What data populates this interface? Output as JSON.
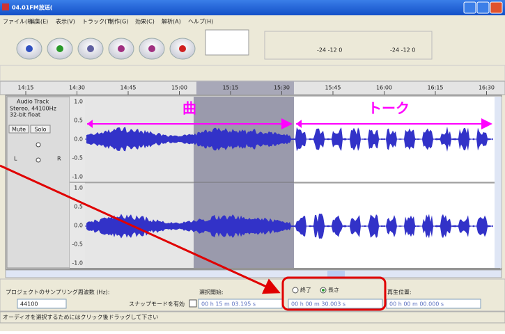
{
  "window": {
    "title": "04.01FM放送("
  },
  "menu": [
    "ファイル(F)",
    "編集(E)",
    "表示(V)",
    "トラック(T)",
    "制作(G)",
    "効果(C)",
    "解析(A)",
    "ヘルプ(H)"
  ],
  "meters": {
    "playback_scale": "-24 -12 0",
    "record_scale": "-24 -12 0"
  },
  "timeline": [
    "14:15",
    "14:30",
    "14:45",
    "15:00",
    "15:15",
    "15:30",
    "15:45",
    "16:00",
    "16:15",
    "16:30"
  ],
  "track": {
    "name": "Audio Track",
    "info": [
      "Stereo, 44100Hz",
      "32-bit float"
    ],
    "mute": "Mute",
    "solo": "Solo",
    "left": "L",
    "right": "R"
  },
  "scale": [
    "1.0",
    "0.5",
    "0.0",
    "-0.5",
    "-1.0"
  ],
  "annotations": {
    "song": "曲",
    "talk": "トーク"
  },
  "bottom": {
    "rate_label": "プロジェクトのサンプリング周波数 (Hz):",
    "rate": "44100",
    "snap": "スナップモードを有効",
    "start_label": "選択開始:",
    "start": "00 h 15 m 03.195 s",
    "end_option": "終了",
    "length_option": "長さ",
    "length": "00 h 00 m 30.003 s",
    "position_label": "再生位置:",
    "position": "00 h 00 m 00.000 s"
  },
  "status": "オーディオを選択するためにはクリック後ドラッグして下さい"
}
